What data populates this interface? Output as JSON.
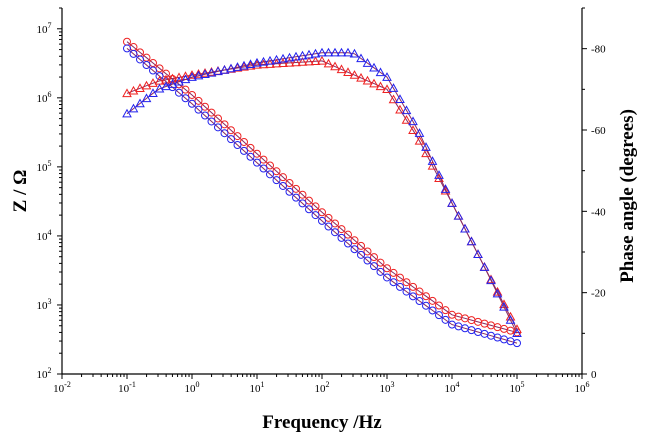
{
  "chart_data": {
    "type": "line",
    "xlabel": "Frequency /Hz",
    "ylabel_left": "Z / Ω",
    "ylabel_right": "Phase angle (degrees)",
    "x_scale": "log",
    "y_left_scale": "log",
    "xlim": [
      0.01,
      1000000
    ],
    "ylim_left": [
      100,
      20000000
    ],
    "ylim_right": [
      0,
      -90
    ],
    "x_ticks": [
      {
        "base": "10",
        "exp": "-2"
      },
      {
        "base": "10",
        "exp": "-1"
      },
      {
        "base": "10",
        "exp": "0"
      },
      {
        "base": "10",
        "exp": "1"
      },
      {
        "base": "10",
        "exp": "2"
      },
      {
        "base": "10",
        "exp": "3"
      },
      {
        "base": "10",
        "exp": "4"
      },
      {
        "base": "10",
        "exp": "5"
      },
      {
        "base": "10",
        "exp": "6"
      }
    ],
    "y_left_ticks": [
      {
        "base": "10",
        "exp": "2"
      },
      {
        "base": "10",
        "exp": "3"
      },
      {
        "base": "10",
        "exp": "4"
      },
      {
        "base": "10",
        "exp": "5"
      },
      {
        "base": "10",
        "exp": "6"
      },
      {
        "base": "10",
        "exp": "7"
      }
    ],
    "y_right_ticks": [
      "0",
      "-20",
      "-40",
      "-60",
      "-80"
    ],
    "grid": false,
    "colors": {
      "red": "#ee2222",
      "blue": "#2222ee",
      "fit": "#8a2a60"
    },
    "series": [
      {
        "color": "red",
        "marker": "circle",
        "axis": "left",
        "points": [
          [
            0.1,
            6500000
          ],
          [
            1,
            1100000
          ],
          [
            10,
            155000
          ],
          [
            100,
            22000
          ],
          [
            1000,
            3400
          ],
          [
            10000,
            720
          ],
          [
            100000,
            400
          ]
        ]
      },
      {
        "color": "blue",
        "marker": "circle",
        "axis": "left",
        "points": [
          [
            0.1,
            5200000
          ],
          [
            1,
            820000
          ],
          [
            10,
            115000
          ],
          [
            100,
            16500
          ],
          [
            1000,
            2500
          ],
          [
            10000,
            520
          ],
          [
            100000,
            280
          ]
        ]
      },
      {
        "color": "red",
        "marker": "triangle",
        "axis": "right",
        "points": [
          [
            0.1,
            -69
          ],
          [
            0.3,
            -72
          ],
          [
            1,
            -73.5
          ],
          [
            10,
            -76
          ],
          [
            100,
            -77
          ],
          [
            1000,
            -70
          ],
          [
            3000,
            -58
          ],
          [
            10000,
            -42
          ],
          [
            30000,
            -27
          ],
          [
            100000,
            -11
          ]
        ]
      },
      {
        "color": "blue",
        "marker": "triangle",
        "axis": "right",
        "points": [
          [
            0.1,
            -64
          ],
          [
            0.3,
            -70
          ],
          [
            1,
            -73
          ],
          [
            10,
            -76.5
          ],
          [
            100,
            -79
          ],
          [
            300,
            -79
          ],
          [
            1000,
            -73
          ],
          [
            3000,
            -60
          ],
          [
            10000,
            -42
          ],
          [
            30000,
            -27
          ],
          [
            100000,
            -10
          ]
        ]
      }
    ]
  }
}
